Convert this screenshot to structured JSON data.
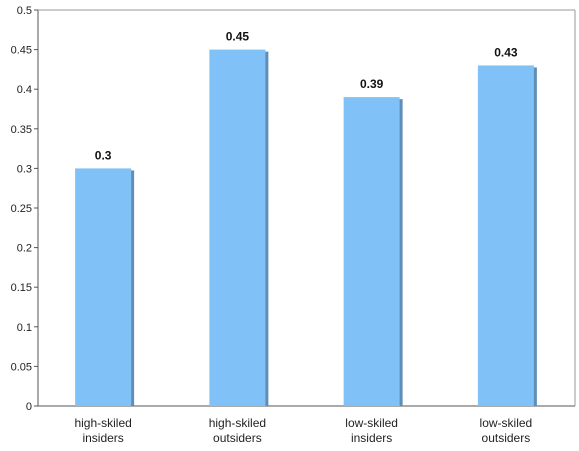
{
  "chart_data": {
    "type": "bar",
    "categories": [
      [
        "high-skiled",
        "insiders"
      ],
      [
        "high-skiled",
        "outsiders"
      ],
      [
        "low-skiled",
        "insiders"
      ],
      [
        "low-skiled",
        "outsiders"
      ]
    ],
    "values": [
      0.3,
      0.45,
      0.39,
      0.43
    ],
    "data_labels": [
      "0.3",
      "0.45",
      "0.39",
      "0.43"
    ],
    "y_ticks": [
      "0",
      "0.05",
      "0.1",
      "0.15",
      "0.2",
      "0.25",
      "0.3",
      "0.35",
      "0.4",
      "0.45",
      "0.5"
    ],
    "ylim": [
      0,
      0.5
    ],
    "grid": false,
    "legend": "none",
    "bar_color": "#80c1f7",
    "bar_shadow_color": "#5f8fb8"
  }
}
